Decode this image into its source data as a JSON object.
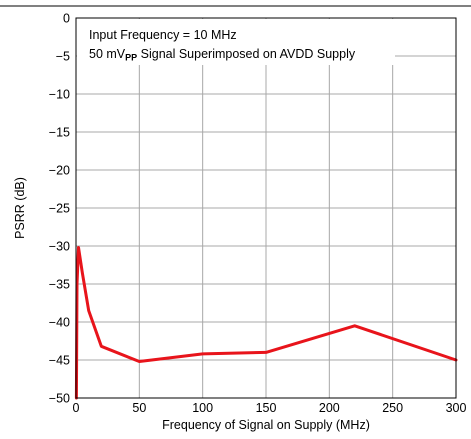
{
  "chart_data": {
    "type": "line",
    "xlabel": "Frequency of Signal on Supply (MHz)",
    "ylabel": "PSRR  (dB)",
    "xlim": [
      0,
      300
    ],
    "ylim": [
      -50,
      0
    ],
    "x_ticks": [
      0,
      50,
      100,
      150,
      200,
      250,
      300
    ],
    "y_ticks": [
      0,
      -5,
      -10,
      -15,
      -20,
      -25,
      -30,
      -35,
      -40,
      -45,
      -50
    ],
    "x_tick_labels": [
      "0",
      "50",
      "100",
      "150",
      "200",
      "250",
      "300"
    ],
    "y_tick_labels": [
      "0",
      "−5",
      "−10",
      "−15",
      "−20",
      "−25",
      "−30",
      "−35",
      "−40",
      "−45",
      "−50"
    ],
    "grid": true,
    "annotations": [
      {
        "text": "Input Frequency = 10 MHz"
      },
      {
        "text_before": "50 mV",
        "subscript": "PP",
        "text_after": " Signal Superimposed on AVDD Supply"
      }
    ],
    "series": [
      {
        "color": "#e8141b",
        "x": [
          0.3,
          0.8,
          2,
          5,
          10,
          20,
          50,
          100,
          150,
          220,
          300
        ],
        "y": [
          -50,
          -35,
          -30.2,
          -33.5,
          -38.5,
          -43.2,
          -45.2,
          -44.2,
          -44,
          -40.5,
          -45
        ]
      }
    ]
  }
}
